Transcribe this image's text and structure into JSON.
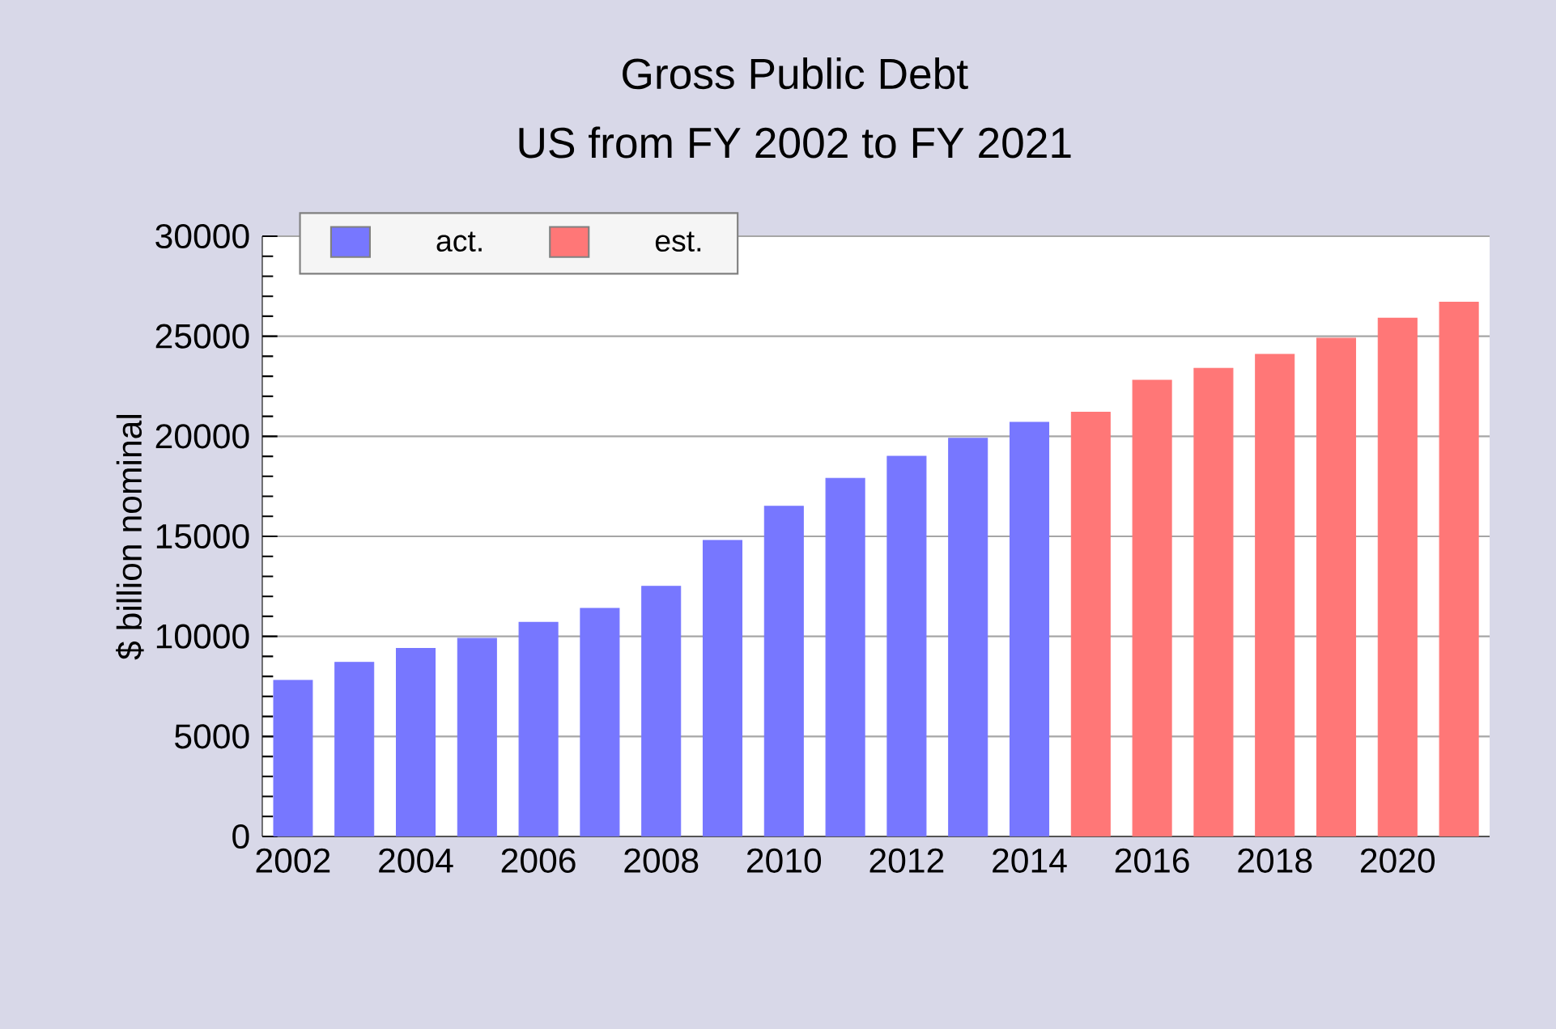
{
  "chart_data": {
    "type": "bar",
    "title": "Gross Public Debt",
    "subtitle": "US from FY 2002 to FY 2021",
    "ylabel": "$ billion nominal",
    "categories": [
      "2002",
      null,
      "2004",
      null,
      "2006",
      null,
      "2008",
      null,
      "2010",
      null,
      "2012",
      null,
      "2014",
      null,
      "2016",
      null,
      "2018",
      null,
      "2020",
      null
    ],
    "series": [
      {
        "name": "act.",
        "color": "#7777ff",
        "values": [
          7800,
          8700,
          9400,
          9900,
          10700,
          11400,
          12500,
          14800,
          16500,
          17900,
          19000,
          19900,
          20700,
          null,
          null,
          null,
          null,
          null,
          null,
          null
        ]
      },
      {
        "name": "est.",
        "color": "#ff7777",
        "values": [
          null,
          null,
          null,
          null,
          null,
          null,
          null,
          null,
          null,
          null,
          null,
          null,
          null,
          21200,
          22800,
          23400,
          24100,
          24900,
          25900,
          26700
        ]
      }
    ],
    "ylim": [
      0,
      30000
    ],
    "yticks": [
      0,
      5000,
      10000,
      15000,
      20000,
      25000,
      30000
    ],
    "grid": "y",
    "legend": "top left"
  }
}
